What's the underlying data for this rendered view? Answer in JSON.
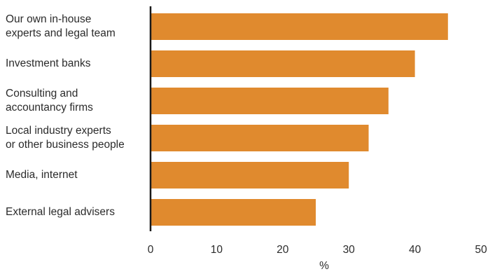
{
  "chart_data": {
    "type": "bar",
    "orientation": "horizontal",
    "categories": [
      [
        "Our own in-house",
        "experts and legal team"
      ],
      [
        "Investment banks"
      ],
      [
        "Consulting and",
        "accountancy firms"
      ],
      [
        "Local industry experts",
        "or other business people"
      ],
      [
        "Media, internet"
      ],
      [
        "External legal advisers"
      ]
    ],
    "values": [
      45,
      40,
      36,
      33,
      30,
      25
    ],
    "xlim": [
      0,
      50
    ],
    "xticks": [
      "0",
      "10",
      "20",
      "30",
      "40",
      "50"
    ],
    "xlabel": "%",
    "grid": false,
    "bar_color": "#e08a2e",
    "axis_color": "#1a1a1a"
  }
}
